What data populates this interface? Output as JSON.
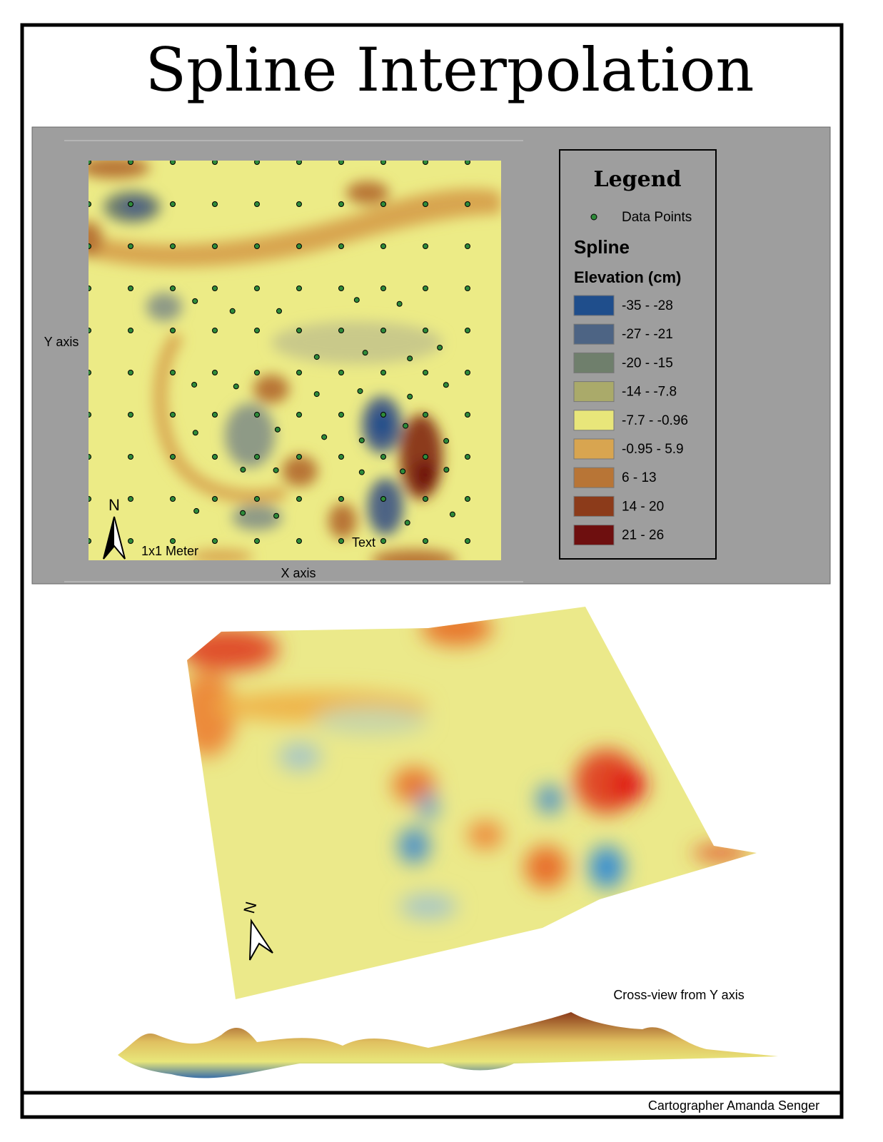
{
  "title": "Spline Interpolation",
  "map": {
    "y_axis_label": "Y axis",
    "x_axis_label": "X axis",
    "scale_label": "1x1 Meter",
    "text_label": "Text",
    "north": "N"
  },
  "legend": {
    "title": "Legend",
    "points_label": "Data Points",
    "layer_title": "Spline",
    "field_title": "Elevation (cm)",
    "classes": [
      {
        "label": "-35 - -28",
        "color": "#1f4e8c"
      },
      {
        "label": "-27 - -21",
        "color": "#4d6484"
      },
      {
        "label": "-20 - -15",
        "color": "#6f7f6c"
      },
      {
        "label": "-14 - -7.8",
        "color": "#aaaa6a"
      },
      {
        "label": "-7.7 - -0.96",
        "color": "#e8e67a"
      },
      {
        "label": "-0.95 - 5.9",
        "color": "#d8a550"
      },
      {
        "label": "6 - 13",
        "color": "#b87536"
      },
      {
        "label": "14 - 20",
        "color": "#8c3b1a"
      },
      {
        "label": "21 - 26",
        "color": "#6e0f0f"
      }
    ]
  },
  "view3d": {
    "caption": "Cross-view from Y axis",
    "north": "N"
  },
  "footer": "Cartographer Amanda Senger"
}
